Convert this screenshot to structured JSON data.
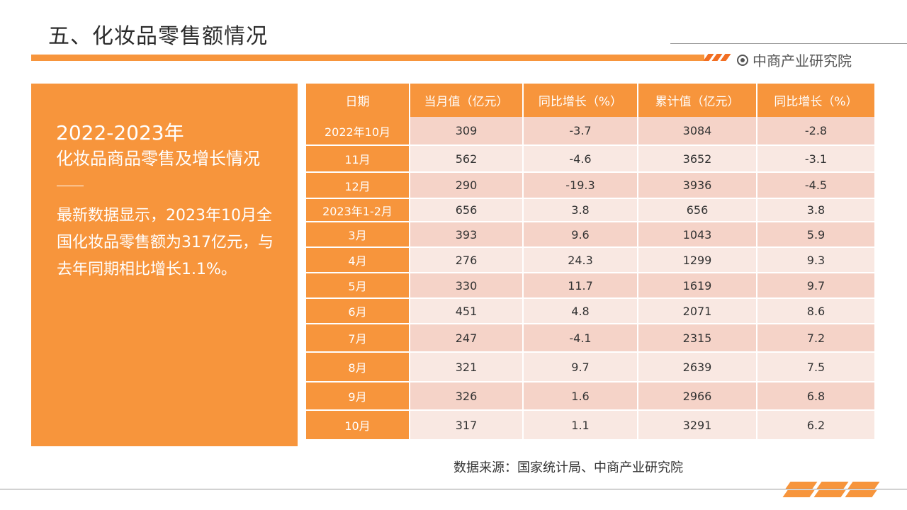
{
  "header": {
    "title": "五、化妆品零售额情况",
    "brand": "中商产业研究院"
  },
  "panel": {
    "year": "2022-2023年",
    "subtitle": "化妆品商品零售及增长情况",
    "description": "最新数据显示，2023年10月全国化妆品零售额为317亿元，与去年同期相比增长1.1%。"
  },
  "table": {
    "headers": [
      "日期",
      "当月值（亿元）",
      "同比增长（%）",
      "累计值（亿元）",
      "同比增长（%）"
    ],
    "rows": [
      [
        "2022年10月",
        "309",
        "-3.7",
        "3084",
        "-2.8"
      ],
      [
        "11月",
        "562",
        "-4.6",
        "3652",
        "-3.1"
      ],
      [
        "12月",
        "290",
        "-19.3",
        "3936",
        "-4.5"
      ],
      [
        "2023年1-2月",
        "656",
        "3.8",
        "656",
        "3.8"
      ],
      [
        "3月",
        "393",
        "9.6",
        "1043",
        "5.9"
      ],
      [
        "4月",
        "276",
        "24.3",
        "1299",
        "9.3"
      ],
      [
        "5月",
        "330",
        "11.7",
        "1619",
        "9.7"
      ],
      [
        "6月",
        "451",
        "4.8",
        "2071",
        "8.6"
      ],
      [
        "7月",
        "247",
        "-4.1",
        "2315",
        "7.2"
      ],
      [
        "8月",
        "321",
        "9.7",
        "2639",
        "7.5"
      ],
      [
        "9月",
        "326",
        "1.6",
        "2966",
        "6.8"
      ],
      [
        "10月",
        "317",
        "1.1",
        "3291",
        "6.2"
      ]
    ]
  },
  "footer": {
    "source": "数据来源：国家统计局、中商产业研究院"
  },
  "colors": {
    "accent": "#f7953c",
    "row_dark": "#f5d3c8",
    "row_light": "#f9e8e2"
  },
  "icons": {
    "brand": "target-circle-icon"
  }
}
